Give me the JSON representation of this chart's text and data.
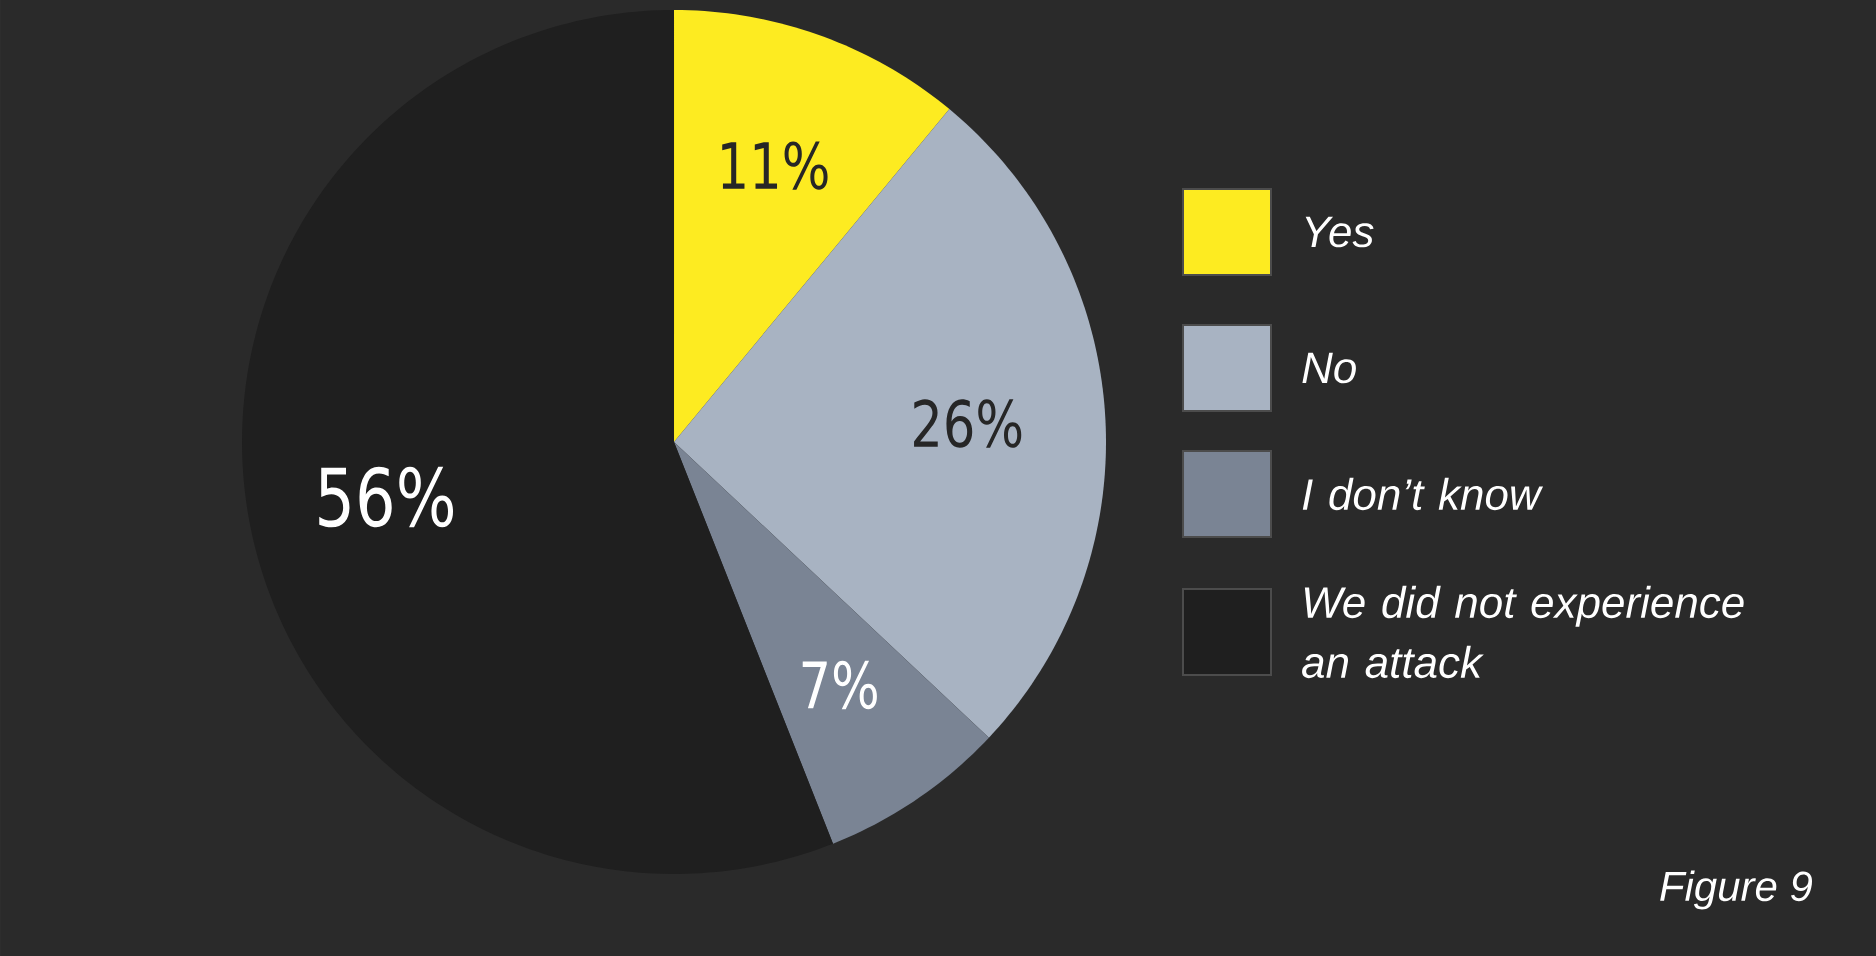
{
  "chart_data": {
    "type": "pie",
    "categories": [
      "Yes",
      "No",
      "I don’t know",
      "We did not experience an attack"
    ],
    "values": [
      11,
      26,
      7,
      56
    ],
    "colors": [
      "#fdeb21",
      "#a8b3c2",
      "#7a8494",
      "#1f1f1f"
    ],
    "value_labels": [
      "11%",
      "26%",
      "7%",
      "56%"
    ],
    "legend": "right",
    "annotations": [
      "Figure 9"
    ]
  }
}
